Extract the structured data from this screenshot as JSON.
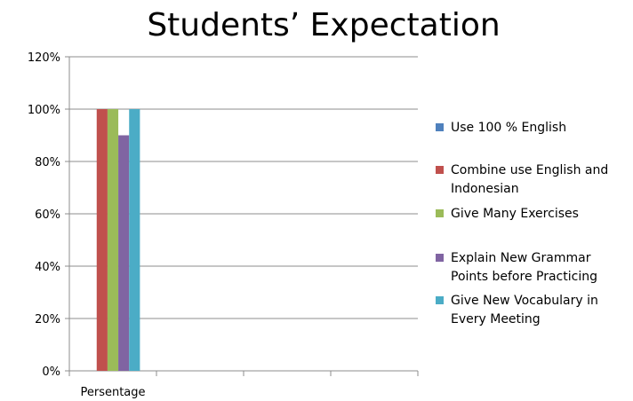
{
  "chart_data": {
    "type": "bar",
    "title": "Students’ Expectation",
    "categories": [
      "Persentage"
    ],
    "yticks": [
      "0%",
      "20%",
      "40%",
      "60%",
      "80%",
      "100%",
      "120%"
    ],
    "ylim": [
      0,
      1.2
    ],
    "grid": true,
    "legend_position": "right",
    "series": [
      {
        "name": "Use 100 % English",
        "values": [
          0.0
        ],
        "color": "#4F81BD"
      },
      {
        "name": "Combine use  English and Indonesian",
        "values": [
          1.0
        ],
        "color": "#C0504D"
      },
      {
        "name": "Give Many Exercises",
        "values": [
          1.0
        ],
        "color": "#9BBB59"
      },
      {
        "name": "Explain New Grammar Points before Practicing",
        "values": [
          0.9
        ],
        "color": "#8064A2"
      },
      {
        "name": "Give New Vocabulary in Every Meeting",
        "values": [
          1.0
        ],
        "color": "#4BACC6"
      }
    ]
  }
}
